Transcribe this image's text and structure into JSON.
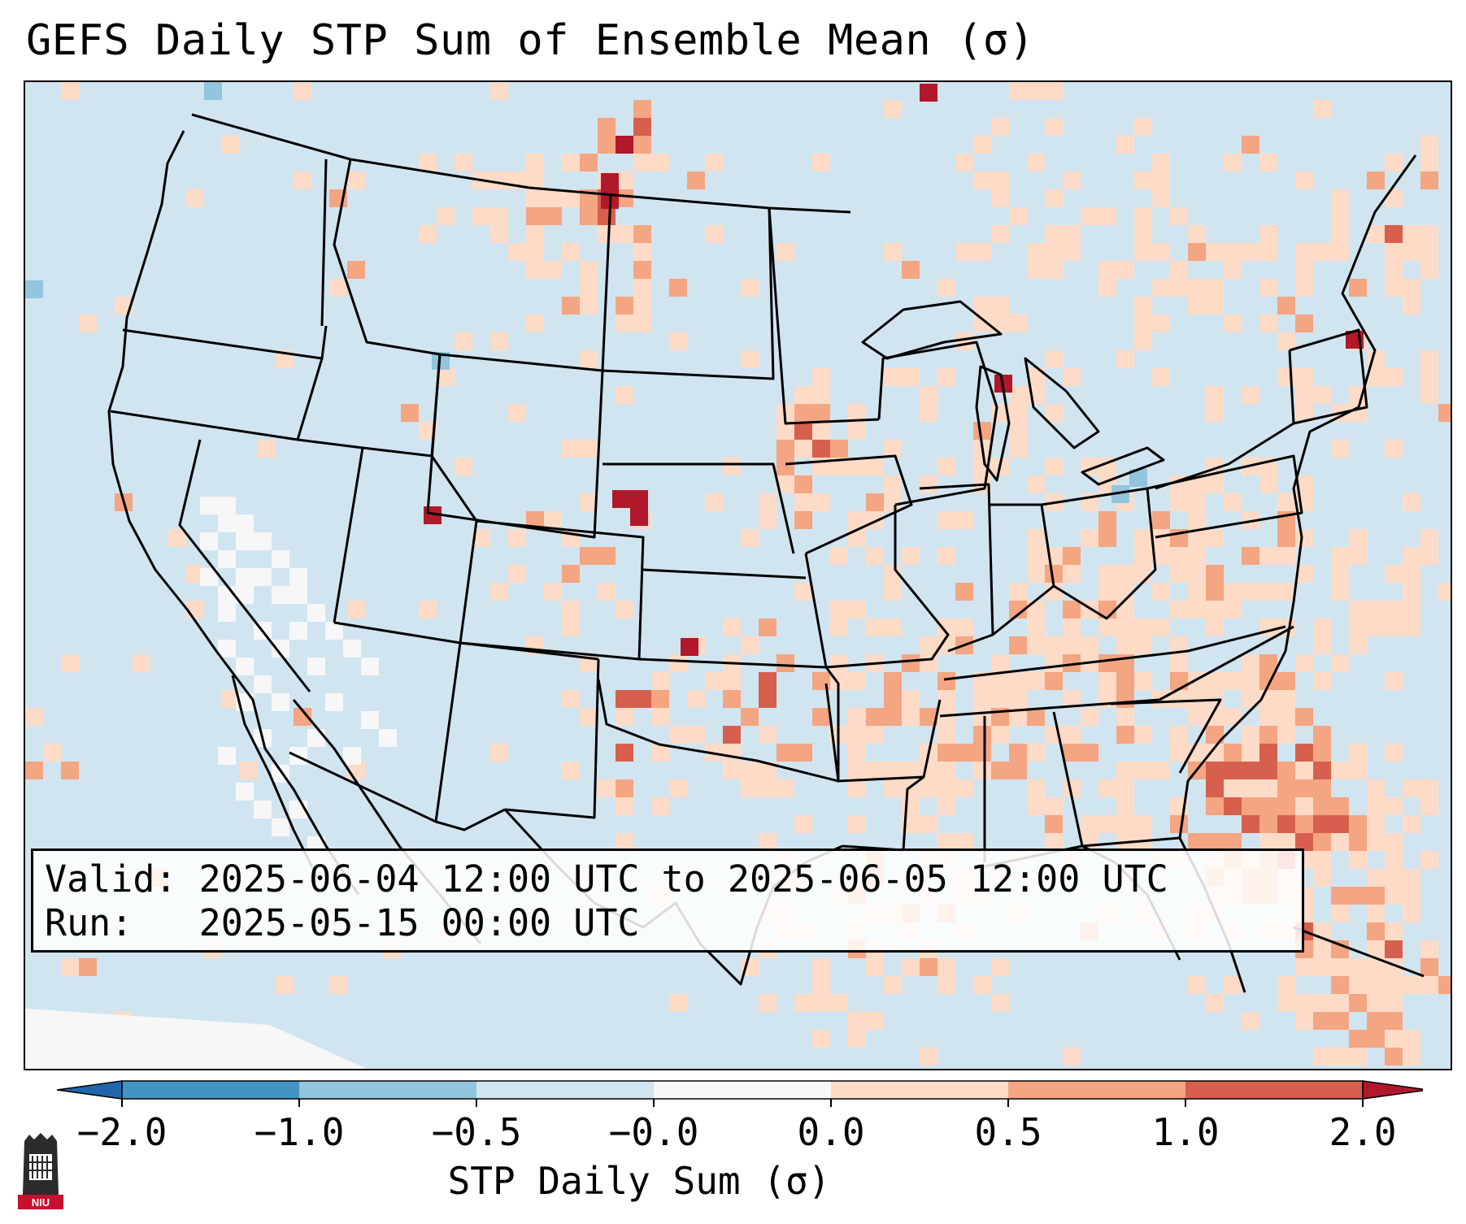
{
  "title": "GEFS Daily STP Sum of Ensemble Mean (σ)",
  "valid_box": {
    "valid_label": "Valid:",
    "valid_value": "2025-06-04 12:00 UTC to 2025-06-05 12:00 UTC",
    "run_label": "Run:",
    "run_value": "2025-05-15 00:00 UTC"
  },
  "colorbar": {
    "label": "STP Daily Sum (σ)",
    "ticks": [
      "−2.0",
      "−1.0",
      "−0.5",
      "−0.0",
      "0.0",
      "0.5",
      "1.0",
      "2.0"
    ],
    "bins": [
      {
        "range": "< -2.0",
        "color": "#2166ac"
      },
      {
        "range": "-2.0 to -1.0",
        "color": "#4393c3"
      },
      {
        "range": "-1.0 to -0.5",
        "color": "#92c5de"
      },
      {
        "range": "-0.5 to -0.0",
        "color": "#d1e5f0"
      },
      {
        "range": "-0.0 to 0.0",
        "color": "#f7f7f7"
      },
      {
        "range": "0.0 to 0.5",
        "color": "#fddbc7"
      },
      {
        "range": "0.5 to 1.0",
        "color": "#f4a582"
      },
      {
        "range": "1.0 to 2.0",
        "color": "#d6604d"
      },
      {
        "range": "> 2.0",
        "color": "#b2182b"
      }
    ]
  },
  "map": {
    "background_color": "#d1e5f0",
    "region": "Continental United States",
    "hotspots": [
      {
        "name": "Southeast Atlantic coast",
        "category": "1.0 to 2.0"
      },
      {
        "name": "Eastern Colorado",
        "category": "> 2.0"
      },
      {
        "name": "Montana",
        "category": "> 2.0"
      },
      {
        "name": "Southern Iowa / Minnesota",
        "category": "1.0 to 2.0"
      },
      {
        "name": "Tennessee Valley",
        "category": "0.5 to 1.0"
      },
      {
        "name": "Western Oklahoma",
        "category": "> 2.0"
      }
    ]
  },
  "logo": {
    "text": "NIU"
  }
}
